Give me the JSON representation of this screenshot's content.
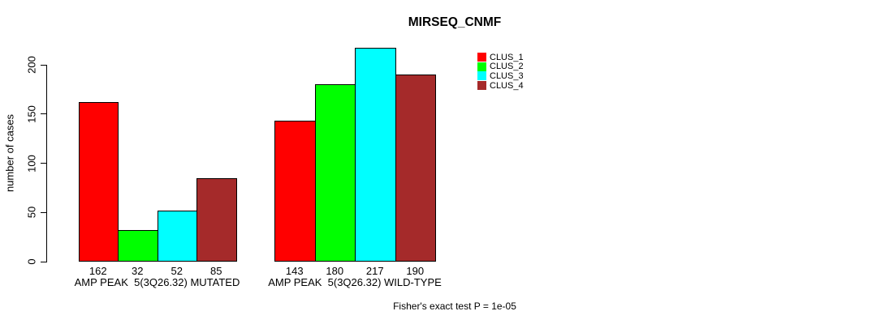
{
  "chart_data": {
    "type": "bar",
    "title": "MIRSEQ_CNMF",
    "ylabel": "number of cases",
    "xlabel": "",
    "ylim": [
      0,
      200
    ],
    "yticks": [
      0,
      50,
      100,
      150,
      200
    ],
    "grid": false,
    "legend_position": "top-right",
    "categories": [
      "AMP PEAK  5(3Q26.32) MUTATED",
      "AMP PEAK  5(3Q26.32) WILD-TYPE"
    ],
    "series": [
      {
        "name": "CLUS_1",
        "color": "#FF0000",
        "values": [
          162,
          143
        ]
      },
      {
        "name": "CLUS_2",
        "color": "#00FF00",
        "values": [
          32,
          180
        ]
      },
      {
        "name": "CLUS_3",
        "color": "#00FFFF",
        "values": [
          52,
          217
        ]
      },
      {
        "name": "CLUS_4",
        "color": "#A52A2A",
        "values": [
          85,
          190
        ]
      }
    ],
    "bar_value_labels": [
      [
        162,
        32,
        52,
        85
      ],
      [
        143,
        180,
        217,
        190
      ]
    ],
    "annotation": "Fisher's exact test P = 1e-05"
  }
}
